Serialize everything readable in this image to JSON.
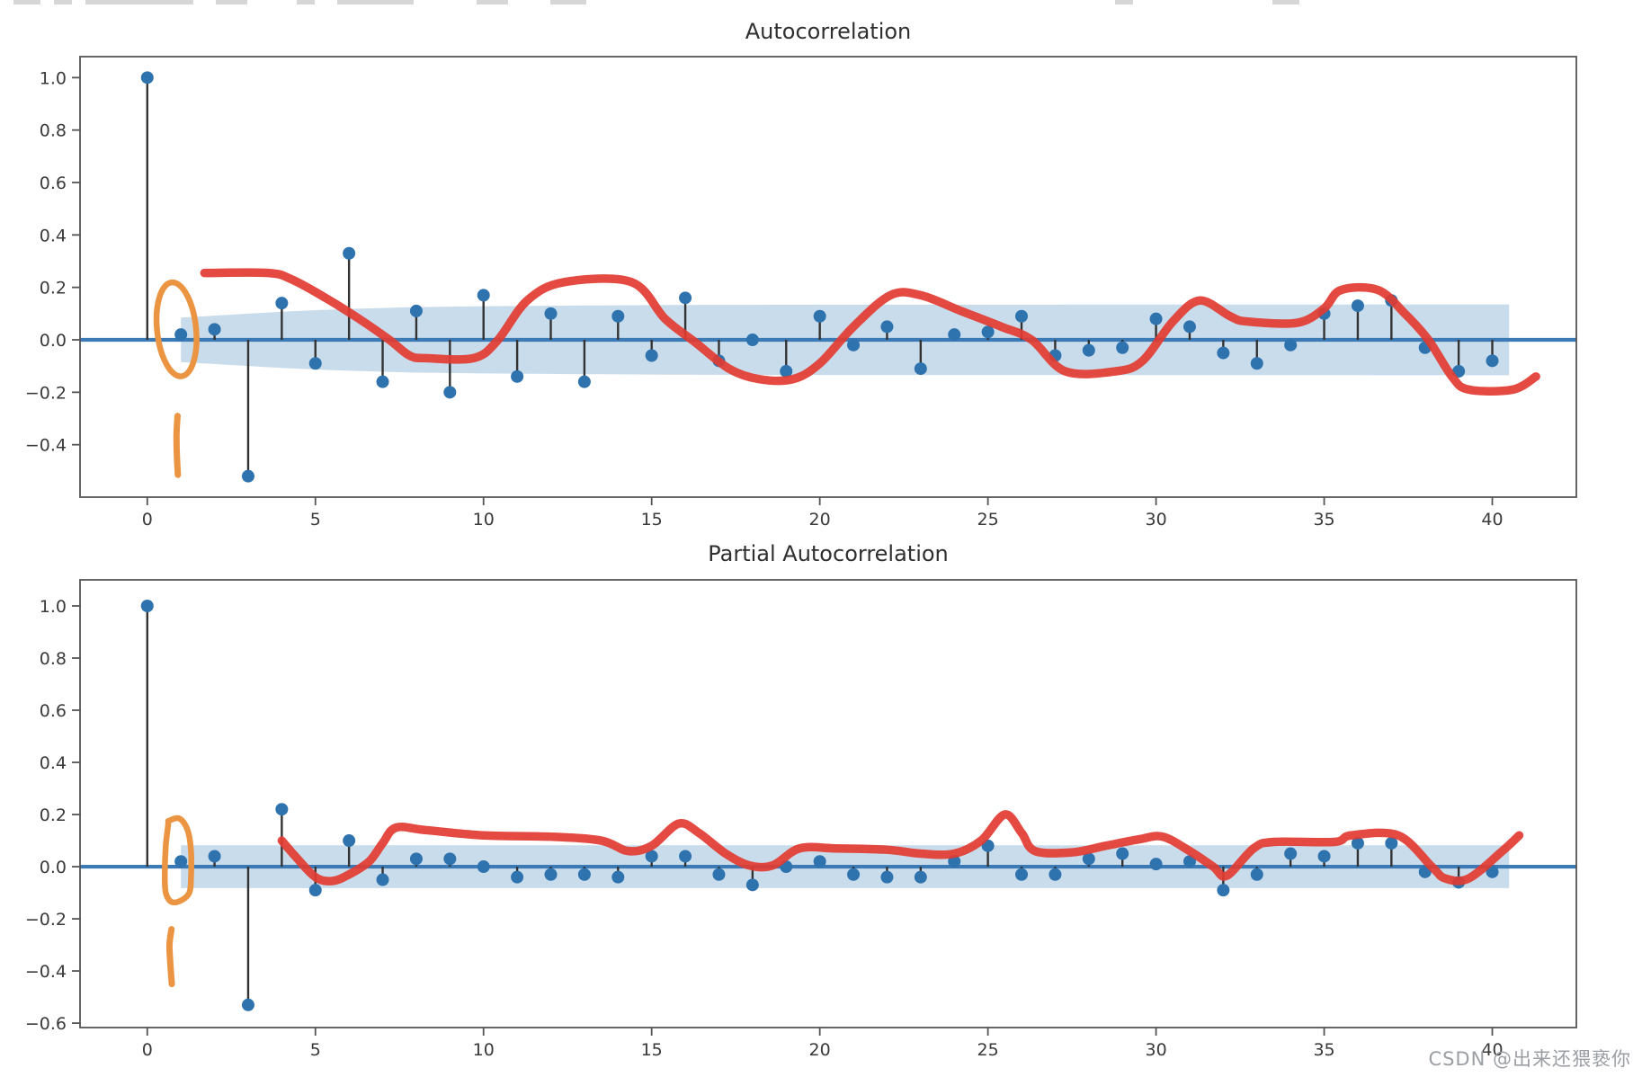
{
  "page": {
    "watermark": "CSDN @出来还猥亵你",
    "top_cropped_fragments": [
      [
        15,
        30
      ],
      [
        60,
        20
      ],
      [
        95,
        120
      ],
      [
        240,
        35
      ],
      [
        330,
        20
      ],
      [
        375,
        85
      ],
      [
        530,
        35
      ],
      [
        612,
        40
      ],
      [
        1240,
        20
      ],
      [
        1415,
        30
      ]
    ]
  },
  "colors": {
    "marker": "#2e73ae",
    "stem": "#333333",
    "zero_line": "#3c7ab5",
    "band": "#c9dcec",
    "red_annotation": "#e23b31",
    "orange_annotation": "#eb9442",
    "axis": "#555555",
    "tick_label": "#3a3a3a",
    "title": "#2f2f2f",
    "watermark": "#9b9fa4",
    "fragment": "#cfcfcf"
  },
  "chart_data": [
    {
      "type": "stem",
      "id": "acf",
      "title": "Autocorrelation",
      "xlabel": "",
      "ylabel": "",
      "legend": "none",
      "grid": false,
      "xlim": [
        -2.0,
        42.5
      ],
      "ylim": [
        -0.6,
        1.08
      ],
      "x_ticks": {
        "values": [
          0,
          5,
          10,
          15,
          20,
          25,
          30,
          35,
          40
        ],
        "labels": [
          "0",
          "5",
          "10",
          "15",
          "20",
          "25",
          "30",
          "35",
          "40"
        ]
      },
      "y_ticks": {
        "values": [
          1.0,
          0.8,
          0.6,
          0.4,
          0.2,
          0.0,
          -0.2,
          -0.4
        ],
        "labels": [
          "1.0",
          "0.8",
          "0.6",
          "0.4",
          "0.2",
          "0.0",
          "−0.2",
          "−0.4"
        ]
      },
      "lags": [
        0,
        1,
        2,
        3,
        4,
        5,
        6,
        7,
        8,
        9,
        10,
        11,
        12,
        13,
        14,
        15,
        16,
        17,
        18,
        19,
        20,
        21,
        22,
        23,
        24,
        25,
        26,
        27,
        28,
        29,
        30,
        31,
        32,
        33,
        34,
        35,
        36,
        37,
        38,
        39,
        40
      ],
      "values": [
        1.0,
        0.02,
        0.04,
        -0.52,
        0.14,
        -0.09,
        0.33,
        -0.16,
        0.11,
        -0.2,
        0.17,
        -0.14,
        0.1,
        -0.16,
        0.09,
        -0.06,
        0.16,
        -0.08,
        0.0,
        -0.12,
        0.09,
        -0.02,
        0.05,
        -0.11,
        0.02,
        0.03,
        0.09,
        -0.06,
        -0.04,
        -0.03,
        0.08,
        0.05,
        -0.05,
        -0.09,
        -0.02,
        0.1,
        0.13,
        0.15,
        -0.03,
        -0.12,
        -0.08
      ],
      "conf_band": {
        "start": 1.0,
        "end": 40.6,
        "half_width_points": [
          [
            1,
            0.085
          ],
          [
            2,
            0.092
          ],
          [
            3,
            0.1
          ],
          [
            4,
            0.107
          ],
          [
            5,
            0.113
          ],
          [
            6,
            0.118
          ],
          [
            8,
            0.125
          ],
          [
            10,
            0.128
          ],
          [
            13,
            0.131
          ],
          [
            16,
            0.133
          ],
          [
            20,
            0.134
          ],
          [
            40.6,
            0.135
          ]
        ]
      },
      "red_curve": [
        [
          1.7,
          0.255
        ],
        [
          3.6,
          0.255
        ],
        [
          4.3,
          0.23
        ],
        [
          5.3,
          0.16
        ],
        [
          6.3,
          0.08
        ],
        [
          7.2,
          0.0
        ],
        [
          7.8,
          -0.06
        ],
        [
          8.3,
          -0.07
        ],
        [
          9.7,
          -0.07
        ],
        [
          10.4,
          -0.005
        ],
        [
          11.3,
          0.15
        ],
        [
          12.4,
          0.22
        ],
        [
          14.4,
          0.22
        ],
        [
          15.4,
          0.08
        ],
        [
          16.3,
          -0.01
        ],
        [
          17.3,
          -0.11
        ],
        [
          18.2,
          -0.15
        ],
        [
          19.2,
          -0.15
        ],
        [
          20.0,
          -0.09
        ],
        [
          21.0,
          0.05
        ],
        [
          22.1,
          0.17
        ],
        [
          23.0,
          0.17
        ],
        [
          24.2,
          0.11
        ],
        [
          25.4,
          0.05
        ],
        [
          26.3,
          0.0
        ],
        [
          27.3,
          -0.12
        ],
        [
          28.8,
          -0.12
        ],
        [
          29.6,
          -0.08
        ],
        [
          30.5,
          0.07
        ],
        [
          31.3,
          0.15
        ],
        [
          32.2,
          0.09
        ],
        [
          32.7,
          0.07
        ],
        [
          34.2,
          0.065
        ],
        [
          35.0,
          0.12
        ],
        [
          35.5,
          0.19
        ],
        [
          36.6,
          0.19
        ],
        [
          37.4,
          0.1
        ],
        [
          38.1,
          0.0
        ],
        [
          38.8,
          -0.14
        ],
        [
          39.3,
          -0.19
        ],
        [
          40.6,
          -0.19
        ],
        [
          41.3,
          -0.14
        ]
      ],
      "orange_ellipse": {
        "cx_lag": 0.87,
        "cy_val": 0.04,
        "rx_lag": 0.58,
        "ry_val": 0.18,
        "rotation_deg": -6
      },
      "orange_stroke": [
        [
          0.9,
          -0.29
        ],
        [
          0.87,
          -0.36
        ],
        [
          0.88,
          -0.44
        ],
        [
          0.91,
          -0.515
        ]
      ]
    },
    {
      "type": "stem",
      "id": "pacf",
      "title": "Partial Autocorrelation",
      "xlabel": "",
      "ylabel": "",
      "legend": "none",
      "grid": false,
      "xlim": [
        -2.0,
        42.5
      ],
      "ylim": [
        -0.617,
        1.1
      ],
      "x_ticks": {
        "values": [
          0,
          5,
          10,
          15,
          20,
          25,
          30,
          35,
          40
        ],
        "labels": [
          "0",
          "5",
          "10",
          "15",
          "20",
          "25",
          "30",
          "35",
          "40"
        ]
      },
      "y_ticks": {
        "values": [
          1.0,
          0.8,
          0.6,
          0.4,
          0.2,
          0.0,
          -0.2,
          -0.4,
          -0.6
        ],
        "labels": [
          "1.0",
          "0.8",
          "0.6",
          "0.4",
          "0.2",
          "0.0",
          "−0.2",
          "−0.4",
          "−0.6"
        ]
      },
      "lags": [
        0,
        1,
        2,
        3,
        4,
        5,
        6,
        7,
        8,
        9,
        10,
        11,
        12,
        13,
        14,
        15,
        16,
        17,
        18,
        19,
        20,
        21,
        22,
        23,
        24,
        25,
        26,
        27,
        28,
        29,
        30,
        31,
        32,
        33,
        34,
        35,
        36,
        37,
        38,
        39,
        40
      ],
      "values": [
        1.0,
        0.02,
        0.04,
        -0.53,
        0.22,
        -0.09,
        0.1,
        -0.05,
        0.03,
        0.03,
        0.0,
        -0.04,
        -0.03,
        -0.03,
        -0.04,
        0.04,
        0.04,
        -0.03,
        -0.07,
        0.0,
        0.02,
        -0.03,
        -0.04,
        -0.04,
        0.02,
        0.08,
        -0.03,
        -0.03,
        0.03,
        0.05,
        0.01,
        0.02,
        -0.09,
        -0.03,
        0.05,
        0.04,
        0.09,
        0.09,
        -0.02,
        -0.06,
        -0.02
      ],
      "conf_band": {
        "start": 1.0,
        "end": 40.5,
        "half_width_points": [
          [
            1,
            0.082
          ],
          [
            40.5,
            0.082
          ]
        ]
      },
      "red_curve": [
        [
          4.0,
          0.1
        ],
        [
          4.4,
          0.04
        ],
        [
          5.0,
          -0.04
        ],
        [
          5.5,
          -0.055
        ],
        [
          6.0,
          -0.03
        ],
        [
          6.6,
          0.02
        ],
        [
          7.0,
          0.09
        ],
        [
          7.4,
          0.15
        ],
        [
          8.3,
          0.14
        ],
        [
          10.0,
          0.12
        ],
        [
          12.0,
          0.115
        ],
        [
          13.5,
          0.1
        ],
        [
          14.3,
          0.06
        ],
        [
          15.0,
          0.08
        ],
        [
          15.8,
          0.165
        ],
        [
          16.4,
          0.13
        ],
        [
          17.2,
          0.05
        ],
        [
          17.9,
          0.005
        ],
        [
          18.6,
          0.005
        ],
        [
          19.4,
          0.07
        ],
        [
          20.5,
          0.07
        ],
        [
          22.0,
          0.065
        ],
        [
          23.0,
          0.05
        ],
        [
          24.0,
          0.05
        ],
        [
          24.8,
          0.1
        ],
        [
          25.5,
          0.2
        ],
        [
          26.0,
          0.13
        ],
        [
          26.4,
          0.06
        ],
        [
          27.5,
          0.055
        ],
        [
          28.5,
          0.08
        ],
        [
          29.5,
          0.105
        ],
        [
          30.2,
          0.115
        ],
        [
          31.0,
          0.06
        ],
        [
          31.7,
          0.0
        ],
        [
          32.1,
          -0.035
        ],
        [
          32.9,
          0.07
        ],
        [
          33.5,
          0.095
        ],
        [
          35.3,
          0.095
        ],
        [
          35.8,
          0.12
        ],
        [
          37.2,
          0.12
        ],
        [
          38.2,
          0.0
        ],
        [
          38.6,
          -0.045
        ],
        [
          39.3,
          -0.045
        ],
        [
          40.3,
          0.06
        ],
        [
          40.8,
          0.12
        ]
      ],
      "orange_loop": [
        [
          0.62,
          0.175
        ],
        [
          0.95,
          0.185
        ],
        [
          1.2,
          0.14
        ],
        [
          1.3,
          0.06
        ],
        [
          1.3,
          -0.04
        ],
        [
          1.25,
          -0.1
        ],
        [
          1.0,
          -0.13
        ],
        [
          0.72,
          -0.135
        ],
        [
          0.55,
          -0.1
        ],
        [
          0.52,
          -0.03
        ],
        [
          0.55,
          0.08
        ],
        [
          0.62,
          0.16
        ]
      ],
      "orange_stroke": [
        [
          0.72,
          -0.24
        ],
        [
          0.66,
          -0.3
        ],
        [
          0.69,
          -0.38
        ],
        [
          0.73,
          -0.45
        ]
      ]
    }
  ]
}
